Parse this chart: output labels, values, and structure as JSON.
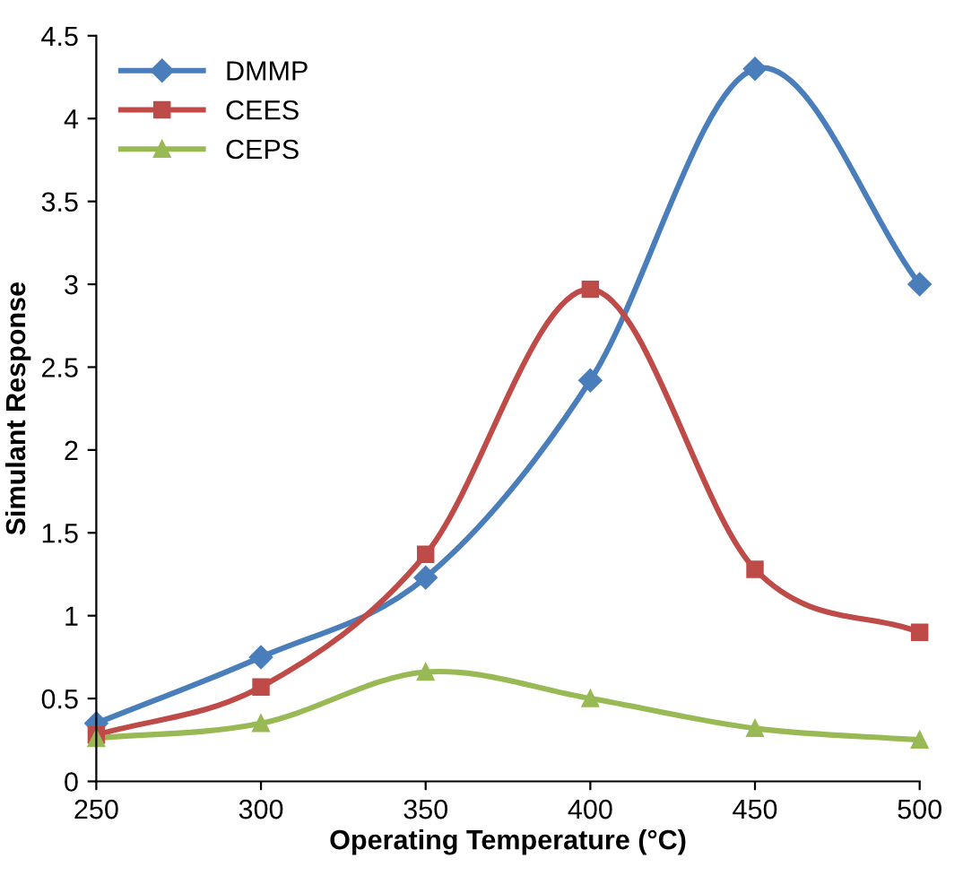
{
  "chart_data": {
    "type": "line",
    "xlabel": "Operating Temperature (°C)",
    "ylabel": "Simulant Response",
    "x": [
      250,
      300,
      350,
      400,
      450,
      500
    ],
    "series": [
      {
        "name": "DMMP",
        "color": "#4a7ebb",
        "marker": "diamond",
        "values": [
          0.35,
          0.75,
          1.23,
          2.42,
          4.3,
          3.0
        ]
      },
      {
        "name": "CEES",
        "color": "#be4b48",
        "marker": "square",
        "values": [
          0.28,
          0.57,
          1.37,
          2.97,
          1.28,
          0.9
        ]
      },
      {
        "name": "CEPS",
        "color": "#98b954",
        "marker": "triangle",
        "values": [
          0.26,
          0.35,
          0.66,
          0.5,
          0.32,
          0.25
        ]
      }
    ],
    "xlim": [
      250,
      500
    ],
    "ylim": [
      0,
      4.5
    ],
    "xticks": [
      250,
      300,
      350,
      400,
      450,
      500
    ],
    "yticks": [
      0,
      0.5,
      1,
      1.5,
      2,
      2.5,
      3,
      3.5,
      4,
      4.5
    ],
    "legend": "top left",
    "grid": false,
    "line_style": "solid"
  }
}
